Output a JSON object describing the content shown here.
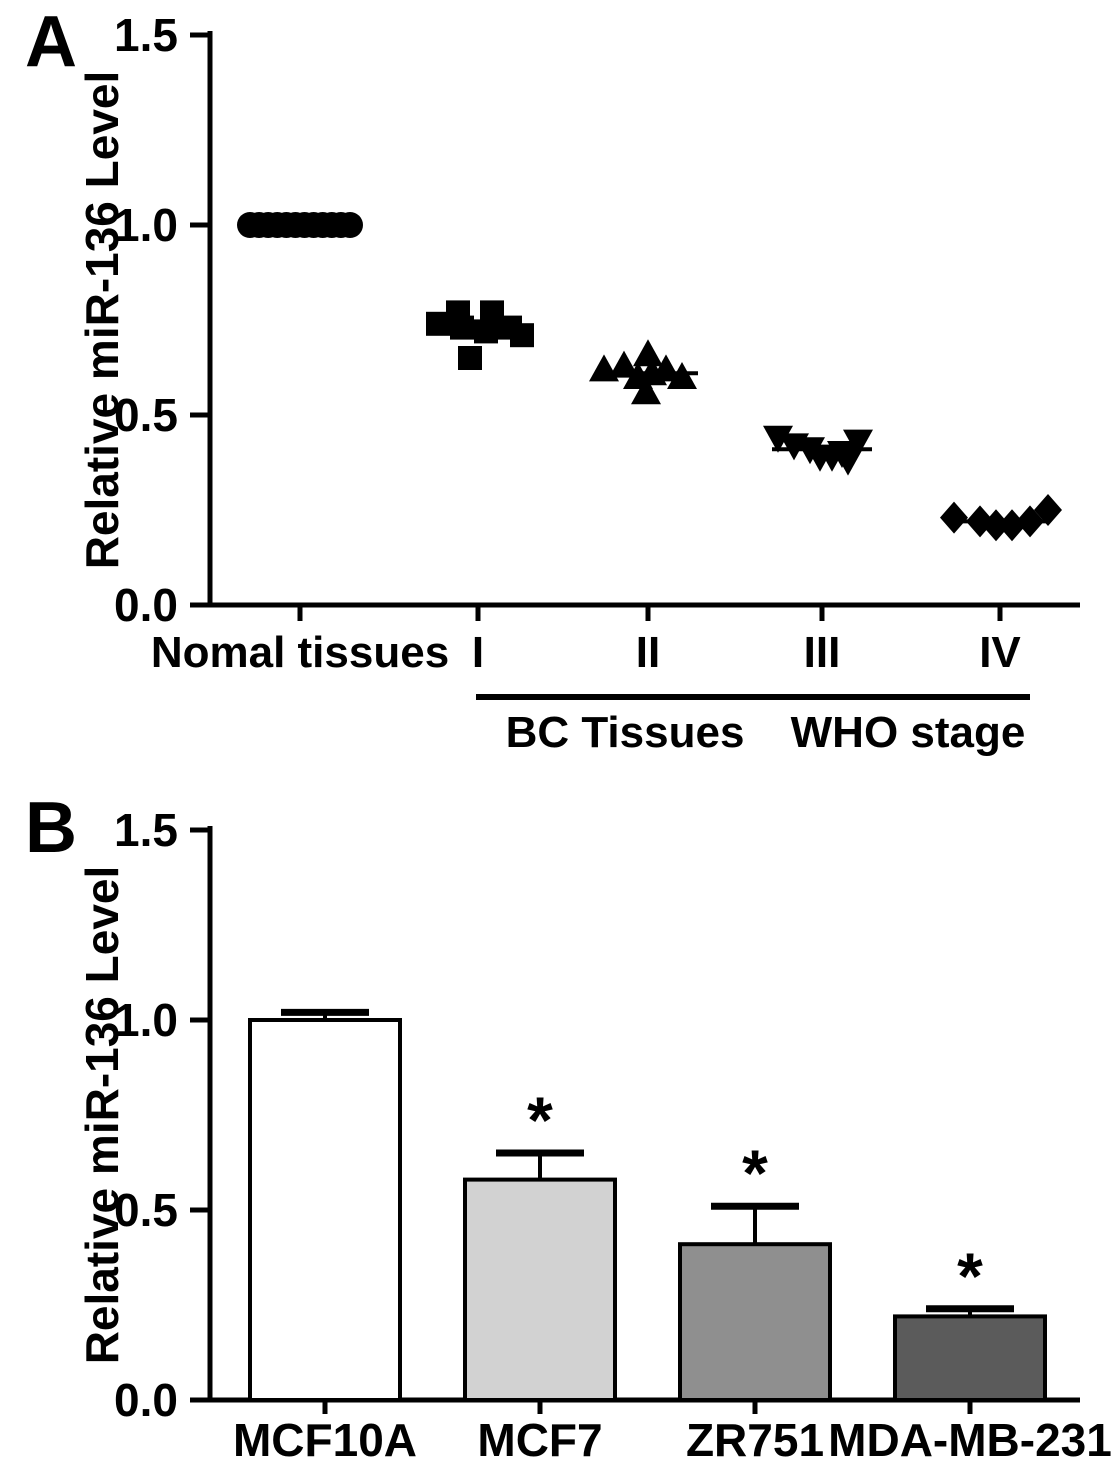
{
  "figure": {
    "background_color": "#ffffff",
    "panels": [
      {
        "label": "A"
      },
      {
        "label": "B"
      }
    ]
  },
  "chart_data": [
    {
      "type": "scatter",
      "panel": "A",
      "title": "",
      "ylabel": "Relative miR-136 Level",
      "ylim": [
        0.0,
        1.5
      ],
      "yticks": [
        "0.0",
        "0.5",
        "1.0",
        "1.5"
      ],
      "categories": [
        "Nomal tissues",
        "I",
        "II",
        "III",
        "IV"
      ],
      "series": [
        {
          "category": "Nomal tissues",
          "marker": "circle",
          "mean": 1.0,
          "values": [
            1.0,
            1.0,
            1.0,
            1.0,
            1.0,
            1.0,
            1.0,
            1.0,
            1.0,
            1.0,
            1.0,
            1.0
          ]
        },
        {
          "category": "I",
          "marker": "square",
          "mean": 0.72,
          "values": [
            0.77,
            0.77,
            0.74,
            0.73,
            0.73,
            0.72,
            0.71,
            0.65
          ]
        },
        {
          "category": "II",
          "marker": "triangle-up",
          "mean": 0.61,
          "values": [
            0.66,
            0.63,
            0.62,
            0.62,
            0.61,
            0.6,
            0.6,
            0.56
          ]
        },
        {
          "category": "III",
          "marker": "triangle-down",
          "mean": 0.41,
          "values": [
            0.44,
            0.43,
            0.42,
            0.41,
            0.4,
            0.39,
            0.39,
            0.38
          ]
        },
        {
          "category": "IV",
          "marker": "diamond",
          "mean": 0.22,
          "values": [
            0.25,
            0.23,
            0.22,
            0.22,
            0.21,
            0.21
          ]
        }
      ],
      "x_annotation": {
        "left_label": "BC Tissues",
        "right_label": "WHO stage",
        "underline_categories": [
          "I",
          "IV"
        ]
      },
      "grid": false,
      "marker_color": "#000000"
    },
    {
      "type": "bar",
      "panel": "B",
      "title": "",
      "ylabel": "Relative miR-136 Level",
      "ylim": [
        0.0,
        1.5
      ],
      "yticks": [
        "0.0",
        "0.5",
        "1.0",
        "1.5"
      ],
      "categories": [
        "MCF10A",
        "MCF7",
        "ZR751",
        "MDA-MB-231"
      ],
      "values": [
        1.0,
        0.58,
        0.41,
        0.22
      ],
      "errors": [
        0.02,
        0.07,
        0.1,
        0.02
      ],
      "significance": [
        "",
        "*",
        "*",
        "*"
      ],
      "bar_fills": [
        "#ffffff",
        "#d2d2d2",
        "#8f8f8f",
        "#5b5b5b"
      ],
      "bar_border_color": "#000000",
      "grid": false
    }
  ]
}
